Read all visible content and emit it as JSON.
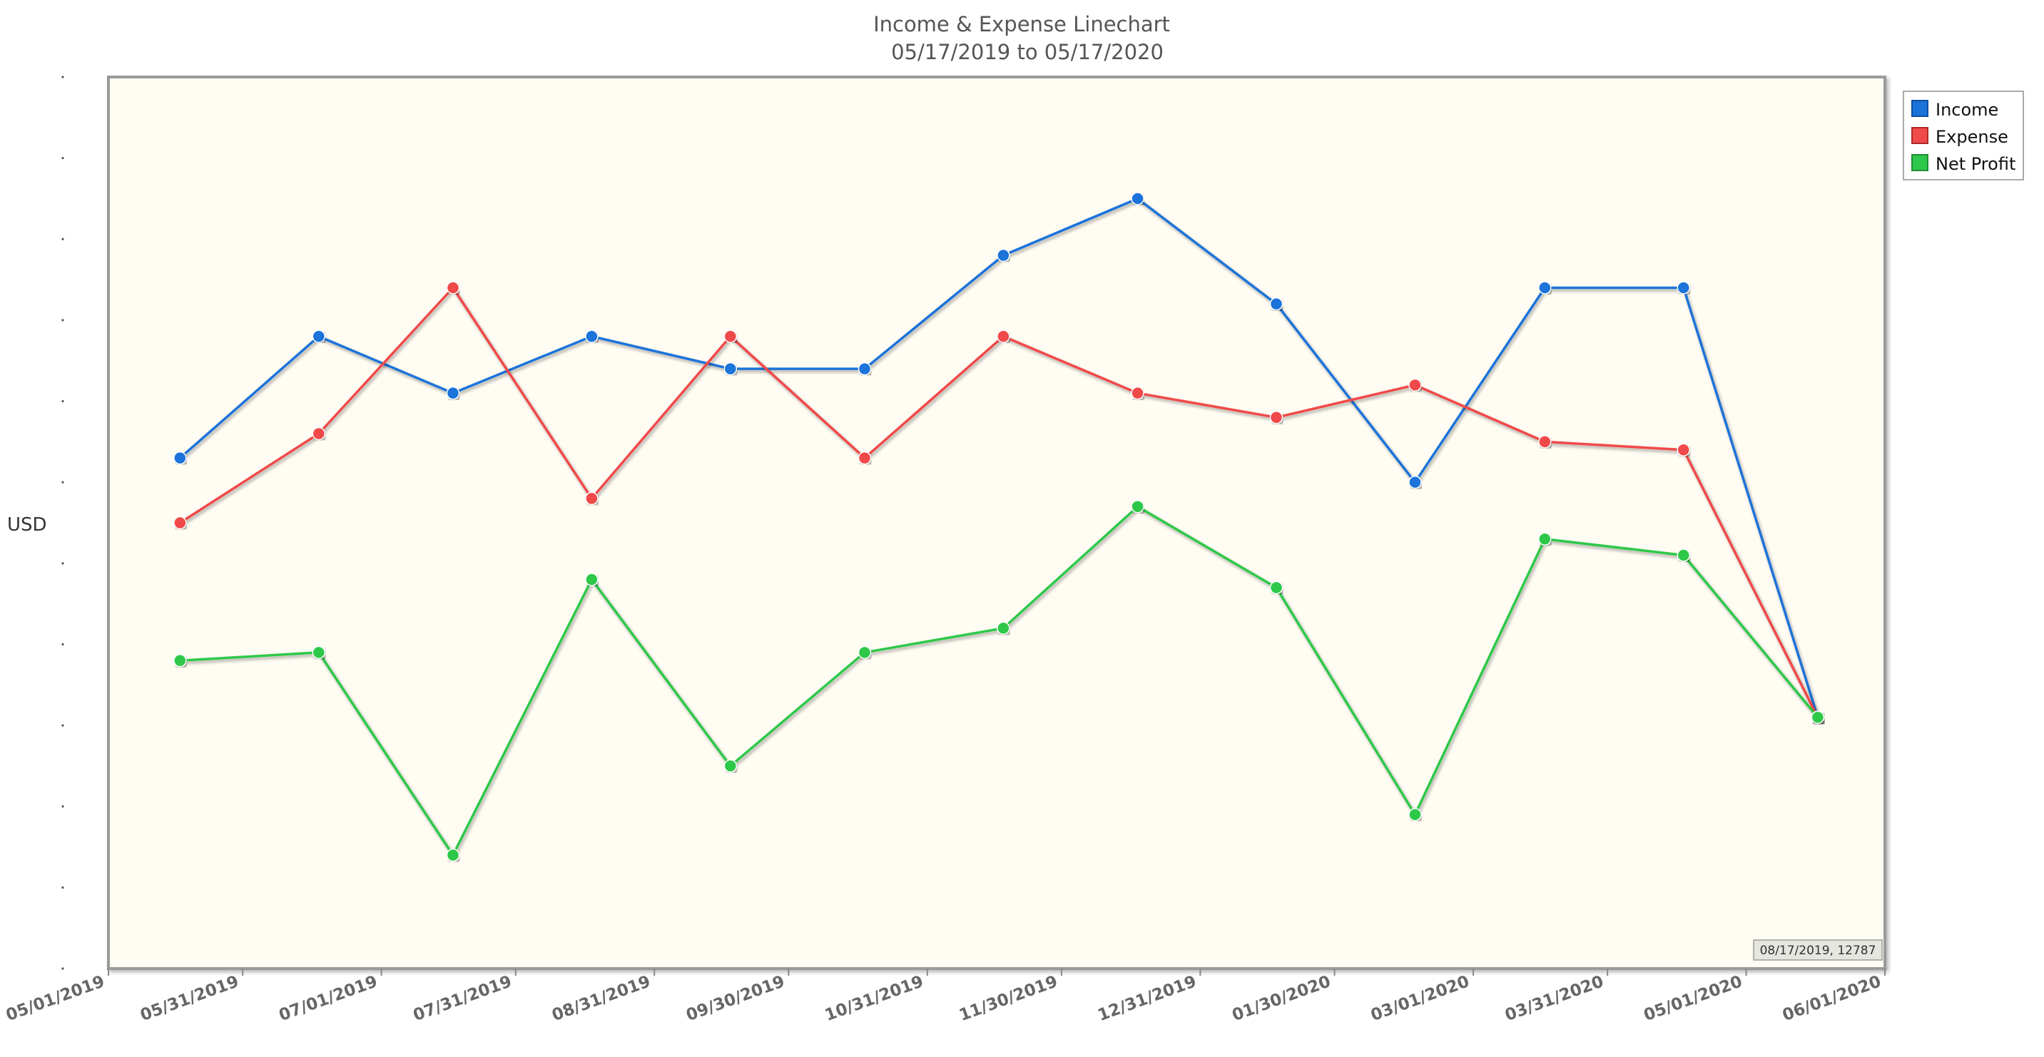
{
  "chart_data": {
    "type": "line",
    "title": "Income & Expense Linechart",
    "subtitle": "05/17/2019 to 05/17/2020",
    "ylabel": "USD",
    "xlabel": "",
    "x_tick_labels": [
      "05/01/2019",
      "05/31/2019",
      "07/01/2019",
      "07/31/2019",
      "08/31/2019",
      "09/30/2019",
      "10/31/2019",
      "11/30/2019",
      "12/31/2019",
      "01/30/2020",
      "03/01/2020",
      "03/31/2020",
      "05/01/2020",
      "06/01/2020"
    ],
    "x_range": [
      "05/01/2019",
      "06/01/2020"
    ],
    "ylim": [
      0,
      11
    ],
    "y_tick_values": [
      0,
      1,
      2,
      3,
      4,
      5,
      6,
      7,
      8,
      9,
      10,
      11
    ],
    "y_tick_labels_visible": false,
    "grid": false,
    "legend_position": "top-right",
    "x": [
      "05/17/2019",
      "06/17/2019",
      "07/17/2019",
      "08/17/2019",
      "09/17/2019",
      "10/17/2019",
      "11/17/2019",
      "12/17/2019",
      "01/17/2020",
      "02/17/2020",
      "03/17/2020",
      "04/17/2020",
      "05/17/2020"
    ],
    "series": [
      {
        "name": "Income",
        "color": "#1a73d9",
        "values": [
          6.3,
          7.8,
          7.1,
          7.8,
          7.4,
          7.4,
          8.8,
          9.5,
          8.2,
          6.0,
          8.4,
          8.4,
          3.1
        ]
      },
      {
        "name": "Expense",
        "color": "#f04a4a",
        "values": [
          5.5,
          6.6,
          8.4,
          5.8,
          7.8,
          6.3,
          7.8,
          7.1,
          6.8,
          7.2,
          6.5,
          6.4,
          3.1
        ]
      },
      {
        "name": "Net Profit",
        "color": "#2ec84a",
        "values": [
          3.8,
          3.9,
          1.4,
          4.8,
          2.5,
          3.9,
          4.2,
          5.7,
          4.7,
          1.9,
          5.3,
          5.1,
          3.1
        ]
      }
    ],
    "readout": "08/17/2019, 12787"
  }
}
